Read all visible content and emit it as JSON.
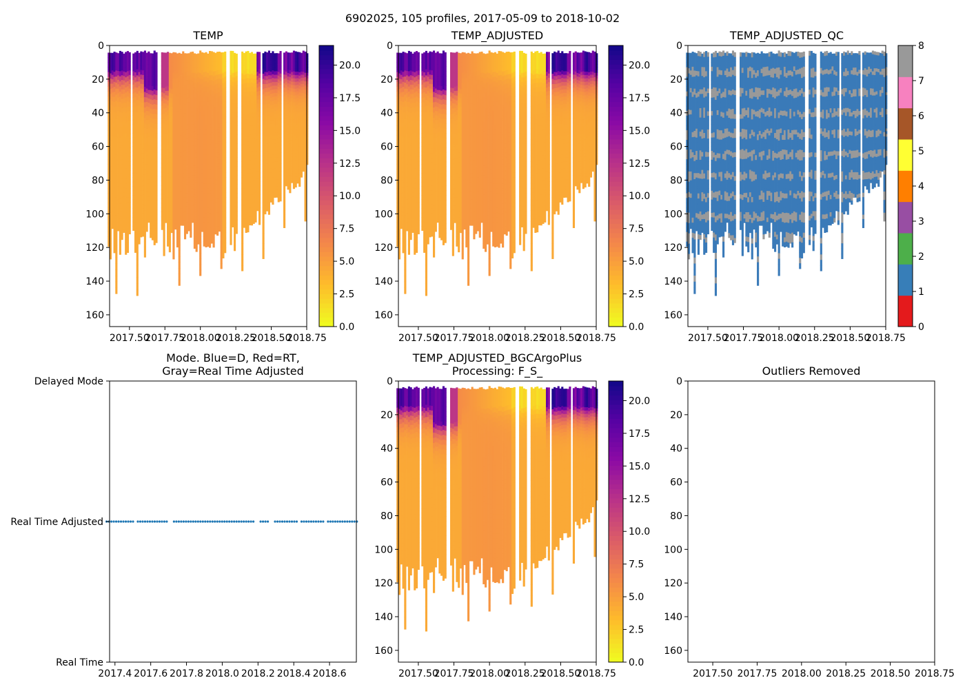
{
  "figure": {
    "suptitle": "6902025, 105 profiles, 2017-05-09 to 2018-10-02"
  },
  "colors": {
    "mode_marker": "#1f77b4",
    "qc_good": "#3a7ab8",
    "qc_gray": "#999999"
  },
  "chart_data": [
    {
      "id": "temp",
      "type": "heatmap",
      "title": "TEMP",
      "xlabel": "",
      "ylabel": "",
      "xlim": [
        2017.36,
        2018.75
      ],
      "ylim": [
        167,
        0
      ],
      "x_ticks": [
        "2017.50",
        "2017.75",
        "2018.00",
        "2018.25",
        "2018.50",
        "2018.75"
      ],
      "y_ticks": [
        "0",
        "20",
        "40",
        "60",
        "80",
        "100",
        "120",
        "140",
        "160"
      ],
      "colormap": "plasma_r",
      "colorbar": {
        "range": [
          0,
          21.5
        ],
        "ticks": [
          "0.0",
          "2.5",
          "5.0",
          "7.5",
          "10.0",
          "12.5",
          "15.0",
          "17.5",
          "20.0"
        ]
      }
    },
    {
      "id": "temp_adjusted",
      "type": "heatmap",
      "title": "TEMP_ADJUSTED",
      "xlabel": "",
      "ylabel": "",
      "xlim": [
        2017.36,
        2018.75
      ],
      "ylim": [
        167,
        0
      ],
      "x_ticks": [
        "2017.50",
        "2017.75",
        "2018.00",
        "2018.25",
        "2018.50",
        "2018.75"
      ],
      "y_ticks": [
        "0",
        "20",
        "40",
        "60",
        "80",
        "100",
        "120",
        "140",
        "160"
      ],
      "colormap": "plasma_r",
      "colorbar": {
        "range": [
          0,
          21.5
        ],
        "ticks": [
          "0.0",
          "2.5",
          "5.0",
          "7.5",
          "10.0",
          "12.5",
          "15.0",
          "17.5",
          "20.0"
        ]
      }
    },
    {
      "id": "temp_adjusted_qc",
      "type": "heatmap",
      "title": "TEMP_ADJUSTED_QC",
      "xlabel": "",
      "ylabel": "",
      "xlim": [
        2017.36,
        2018.75
      ],
      "ylim": [
        167,
        0
      ],
      "x_ticks": [
        "2017.50",
        "2017.75",
        "2018.00",
        "2018.25",
        "2018.50",
        "2018.75"
      ],
      "y_ticks": [
        "0",
        "20",
        "40",
        "60",
        "80",
        "100",
        "120",
        "140",
        "160"
      ],
      "values_present": [
        1,
        8
      ],
      "colorbar": {
        "range": [
          0,
          8
        ],
        "ticks": [
          "0",
          "1",
          "2",
          "3",
          "4",
          "5",
          "6",
          "7",
          "8"
        ],
        "colors": [
          "#e41a1c",
          "#377eb8",
          "#4daf4a",
          "#984ea3",
          "#ff7f00",
          "#ffff33",
          "#a65628",
          "#f781bf",
          "#999999"
        ]
      }
    },
    {
      "id": "mode",
      "type": "scatter",
      "title_lines": [
        "Mode. Blue=D, Red=RT,",
        "Gray=Real Time Adjusted"
      ],
      "xlim": [
        2017.37,
        2018.75
      ],
      "x_ticks": [
        "2017.4",
        "2017.6",
        "2017.8",
        "2018.0",
        "2018.2",
        "2018.4",
        "2018.6"
      ],
      "y_categories": [
        "Real Time",
        "Real Time Adjusted",
        "Delayed Mode"
      ],
      "series": [
        {
          "name": "Real Time Adjusted",
          "level": 1,
          "point_count": 105
        }
      ]
    },
    {
      "id": "bgcargoplus",
      "type": "heatmap",
      "title_lines": [
        "TEMP_ADJUSTED_BGCArgoPlus",
        "Processing: F_S_"
      ],
      "xlim": [
        2017.36,
        2018.75
      ],
      "ylim": [
        167,
        0
      ],
      "x_ticks": [
        "2017.50",
        "2017.75",
        "2018.00",
        "2018.25",
        "2018.50",
        "2018.75"
      ],
      "y_ticks": [
        "0",
        "20",
        "40",
        "60",
        "80",
        "100",
        "120",
        "140",
        "160"
      ],
      "colormap": "plasma_r",
      "colorbar": {
        "range": [
          0,
          21.5
        ],
        "ticks": [
          "0.0",
          "2.5",
          "5.0",
          "7.5",
          "10.0",
          "12.5",
          "15.0",
          "17.5",
          "20.0"
        ]
      }
    },
    {
      "id": "outliers",
      "type": "scatter",
      "title": "Outliers Removed",
      "xlim": [
        2017.36,
        2018.75
      ],
      "ylim": [
        167,
        0
      ],
      "x_ticks": [
        "2017.50",
        "2017.75",
        "2018.00",
        "2018.25",
        "2018.50",
        "2018.75"
      ],
      "y_ticks": [
        "0",
        "20",
        "40",
        "60",
        "80",
        "100",
        "120",
        "140",
        "160"
      ],
      "series": []
    }
  ]
}
